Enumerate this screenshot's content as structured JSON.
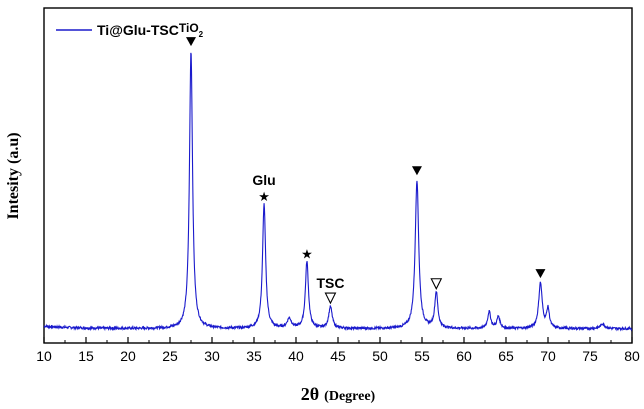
{
  "chart_data": {
    "type": "line",
    "xlabel": "2θ (Degree)",
    "xlabel_main": "2θ",
    "xlabel_unit": "(Degree)",
    "ylabel": "Intesity (a.u)",
    "xlim": [
      10,
      80
    ],
    "xticks": [
      10,
      15,
      20,
      25,
      30,
      35,
      40,
      45,
      50,
      55,
      60,
      65,
      70,
      75,
      80
    ],
    "y_ticks_shown": false,
    "grid": false,
    "legend_position": "top-left",
    "series": [
      {
        "name": "Ti@Glu-TSC",
        "color": "#1a1acc",
        "baseline": 3.0,
        "noise": 0.25,
        "peaks": [
          {
            "x": 27.5,
            "height": 58.0,
            "width": 0.22
          },
          {
            "x": 36.2,
            "height": 26.0,
            "width": 0.22
          },
          {
            "x": 39.2,
            "height": 2.0,
            "width": 0.3
          },
          {
            "x": 41.3,
            "height": 14.0,
            "width": 0.22
          },
          {
            "x": 44.1,
            "height": 4.5,
            "width": 0.25
          },
          {
            "x": 54.4,
            "height": 31.0,
            "width": 0.25
          },
          {
            "x": 56.7,
            "height": 7.5,
            "width": 0.22
          },
          {
            "x": 63.0,
            "height": 3.5,
            "width": 0.22
          },
          {
            "x": 64.1,
            "height": 2.5,
            "width": 0.22
          },
          {
            "x": 69.1,
            "height": 9.5,
            "width": 0.25
          },
          {
            "x": 70.0,
            "height": 4.0,
            "width": 0.2
          },
          {
            "x": 76.5,
            "height": 1.0,
            "width": 0.3
          }
        ]
      }
    ],
    "annotations": [
      {
        "x": 27.5,
        "marker": "filled-triangle",
        "label": "TiO",
        "sub": "2",
        "marker_color": "#000000"
      },
      {
        "x": 36.2,
        "marker": "star",
        "label": "Glu"
      },
      {
        "x": 41.3,
        "marker": "star",
        "label": ""
      },
      {
        "x": 44.1,
        "marker": "open-triangle",
        "label": "TSC"
      },
      {
        "x": 54.4,
        "marker": "filled-triangle",
        "label": ""
      },
      {
        "x": 56.7,
        "marker": "open-triangle",
        "label": ""
      },
      {
        "x": 69.1,
        "marker": "filled-triangle",
        "label": ""
      }
    ]
  }
}
